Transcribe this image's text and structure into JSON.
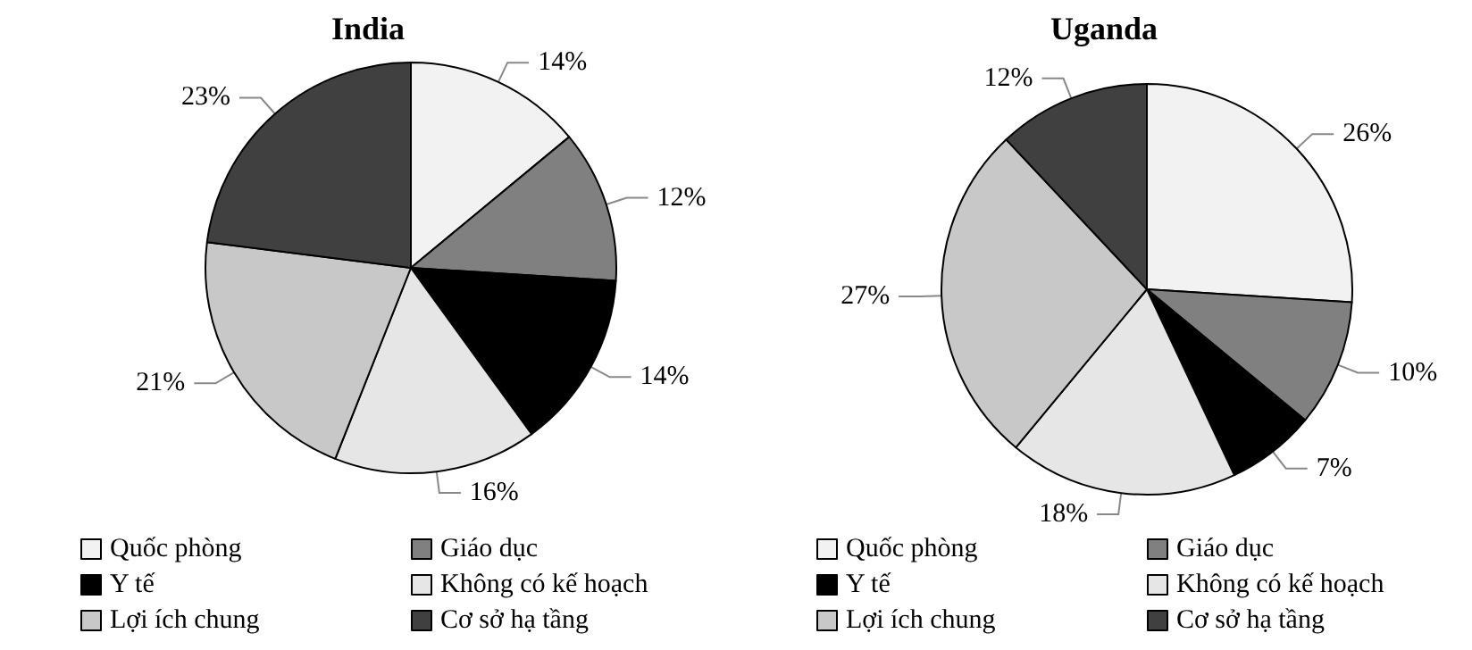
{
  "chart_data": [
    {
      "type": "pie",
      "title": "India",
      "categories": [
        "Quốc phòng",
        "Giáo dục",
        "Y tế",
        "Không có kế hoạch",
        "Lợi ích chung",
        "Cơ sở hạ tầng"
      ],
      "values": [
        14,
        12,
        14,
        16,
        21,
        23
      ],
      "value_labels": [
        "14%",
        "12%",
        "14%",
        "16%",
        "21%",
        "23%"
      ],
      "colors": [
        "#f2f2f2",
        "#808080",
        "#000000",
        "#e6e6e6",
        "#c8c8c8",
        "#404040"
      ],
      "legend": "bottom"
    },
    {
      "type": "pie",
      "title": "Uganda",
      "categories": [
        "Quốc phòng",
        "Giáo dục",
        "Y tế",
        "Không có kế hoạch",
        "Lợi ích chung",
        "Cơ sở hạ tầng"
      ],
      "values": [
        26,
        10,
        7,
        18,
        27,
        12
      ],
      "value_labels": [
        "26%",
        "10%",
        "7%",
        "18%",
        "27%",
        "12%"
      ],
      "colors": [
        "#f2f2f2",
        "#808080",
        "#000000",
        "#e6e6e6",
        "#c8c8c8",
        "#404040"
      ],
      "legend": "bottom"
    }
  ]
}
